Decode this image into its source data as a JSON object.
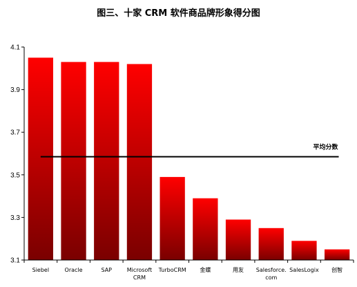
{
  "chart_data": {
    "type": "bar",
    "title": "图三、十家 CRM 软件商品牌形象得分图",
    "categories": [
      "Siebel",
      "Oracle",
      "SAP",
      "Microsoft CRM",
      "TurboCRM",
      "金蝶",
      "用友",
      "Salesforce. com",
      "SalesLogix",
      "创智"
    ],
    "category_lines": [
      [
        "Siebel"
      ],
      [
        "Oracle"
      ],
      [
        "SAP"
      ],
      [
        "Microsoft",
        "CRM"
      ],
      [
        "TurboCRM"
      ],
      [
        "金蝶"
      ],
      [
        "用友"
      ],
      [
        "Salesforce.",
        "com"
      ],
      [
        "SalesLogix"
      ],
      [
        "创智"
      ]
    ],
    "values": [
      4.05,
      4.03,
      4.03,
      4.02,
      3.49,
      3.39,
      3.29,
      3.25,
      3.19,
      3.15
    ],
    "ylim": [
      3.1,
      4.1
    ],
    "yticks": [
      "3.1",
      "3.3",
      "3.5",
      "3.7",
      "3.9",
      "4.1"
    ],
    "average": {
      "label": "平均分数",
      "value": 3.585
    },
    "grid": false,
    "legend": "none",
    "colors": {
      "bar_top": "#ff0000",
      "bar_bottom": "#7a0000",
      "average_line": "#000000"
    }
  }
}
